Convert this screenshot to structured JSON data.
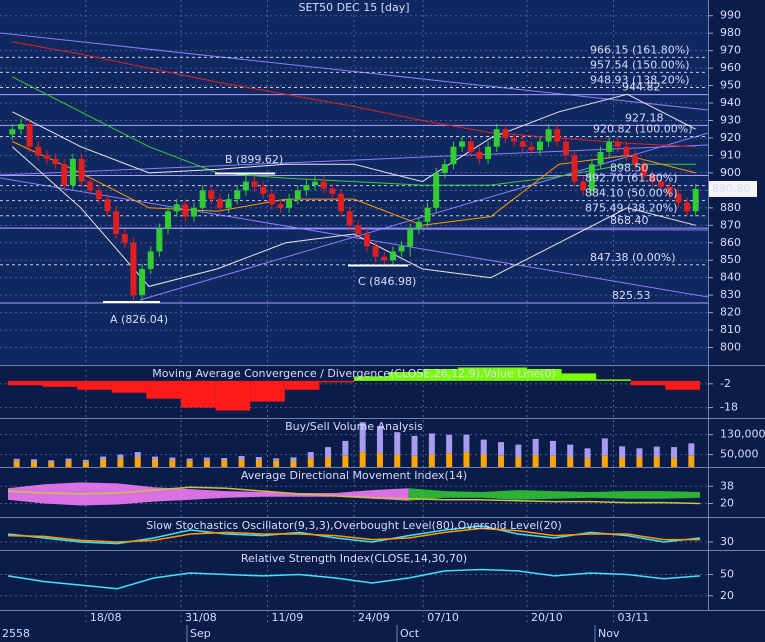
{
  "chart_data": [
    {
      "type": "candlestick",
      "title": "SET50 DEC 15   [day]",
      "categories": [
        null,
        null,
        null,
        null,
        null,
        null,
        null,
        null,
        null,
        "18/08",
        null,
        null,
        null,
        null,
        null,
        null,
        null,
        null,
        null,
        null,
        "31/08",
        null,
        null,
        null,
        null,
        null,
        null,
        null,
        null,
        null,
        "11/09",
        null,
        null,
        null,
        null,
        null,
        null,
        null,
        null,
        null,
        "24/09",
        null,
        null,
        null,
        null,
        null,
        null,
        null,
        "07/10",
        null,
        null,
        null,
        null,
        null,
        null,
        null,
        null,
        null,
        null,
        null,
        "20/10",
        null,
        null,
        null,
        null,
        null,
        null,
        null,
        null,
        null,
        "03/11",
        null,
        null,
        null,
        null,
        null,
        null,
        null,
        null,
        null
      ],
      "periods": [
        "2558",
        "Sep",
        "Oct",
        "Nov"
      ],
      "open": [
        922,
        925,
        928,
        915,
        910,
        908,
        905,
        893,
        908,
        895,
        890,
        885,
        878,
        865,
        860,
        830,
        845,
        855,
        868,
        878,
        882,
        875,
        880,
        890,
        885,
        880,
        885,
        890,
        895,
        892,
        888,
        882,
        880,
        885,
        890,
        893,
        895,
        891,
        888,
        878,
        870,
        865,
        858,
        852,
        850,
        855,
        858,
        868,
        872,
        880,
        900,
        905,
        915,
        918,
        912,
        908,
        915,
        925,
        920,
        918,
        915,
        913,
        918,
        925,
        918,
        910,
        895,
        890,
        905,
        912,
        918,
        915,
        910,
        905,
        898,
        895,
        892,
        888,
        883,
        878
      ],
      "high": [
        928,
        931,
        931,
        918,
        913,
        911,
        908,
        911,
        911,
        898,
        893,
        888,
        881,
        868,
        863,
        848,
        858,
        871,
        881,
        885,
        885,
        883,
        893,
        893,
        888,
        888,
        893,
        899.62,
        898,
        895,
        891,
        885,
        888,
        893,
        896,
        898,
        898,
        894,
        891,
        881,
        873,
        868,
        861,
        855,
        858,
        861,
        871,
        875,
        883,
        903,
        908,
        918,
        921,
        921,
        915,
        918,
        928,
        928,
        923,
        921,
        918,
        921,
        928,
        928,
        921,
        913,
        898,
        908,
        915,
        921,
        921,
        918,
        913,
        908,
        901,
        898,
        895,
        891,
        886,
        893.8
      ],
      "low": [
        919,
        922,
        912,
        907,
        905,
        902,
        890,
        890,
        892,
        887,
        882,
        875,
        862,
        857,
        826.04,
        827,
        842,
        852,
        865,
        875,
        872,
        872,
        877,
        882,
        877,
        877,
        882,
        887,
        889,
        885,
        879,
        877,
        877,
        882,
        887,
        890,
        888,
        885,
        875,
        867,
        862,
        855,
        849,
        846.98,
        847,
        852,
        852,
        865,
        869,
        877,
        897,
        902,
        912,
        909,
        905,
        905,
        912,
        917,
        915,
        912,
        910,
        910,
        915,
        915,
        907,
        892,
        887,
        887,
        902,
        909,
        912,
        907,
        902,
        895,
        892,
        889,
        885,
        880,
        875,
        875
      ],
      "close": [
        925,
        928,
        915,
        910,
        908,
        905,
        893,
        908,
        895,
        890,
        885,
        878,
        865,
        860,
        830,
        845,
        855,
        868,
        878,
        882,
        875,
        880,
        890,
        885,
        880,
        885,
        890,
        895,
        892,
        888,
        882,
        880,
        885,
        890,
        893,
        895,
        891,
        888,
        878,
        870,
        865,
        858,
        852,
        850,
        855,
        858,
        868,
        872,
        880,
        900,
        905,
        915,
        918,
        912,
        908,
        915,
        925,
        920,
        918,
        915,
        913,
        918,
        925,
        918,
        910,
        895,
        890,
        905,
        912,
        918,
        915,
        910,
        905,
        898,
        895,
        892,
        888,
        883,
        878,
        890.8
      ],
      "up_color": "#33cc33",
      "down_color": "#e02020",
      "last_value_label": "890.80",
      "overlays": [
        {
          "color": "#e02020",
          "values": [
            975,
            968,
            960,
            952,
            945,
            938,
            930,
            923,
            920,
            917,
            915
          ]
        },
        {
          "color": "#33cc33",
          "values": [
            955,
            935,
            915,
            900,
            897,
            895,
            893,
            893,
            898,
            905,
            905
          ]
        },
        {
          "color": "#ff9900",
          "values": [
            918,
            900,
            880,
            878,
            885,
            885,
            870,
            875,
            905,
            910,
            900
          ]
        },
        {
          "color": "#e8e8e8",
          "values": [
            935,
            915,
            900,
            902,
            905,
            905,
            895,
            920,
            935,
            945,
            925
          ]
        },
        {
          "color": "#e8e8e8",
          "values": [
            915,
            880,
            835,
            845,
            860,
            865,
            845,
            840,
            860,
            880,
            870
          ]
        }
      ],
      "levels": [
        {
          "value": 966.15,
          "label": "966.15 (161.80%)",
          "color": "#ffff66"
        },
        {
          "value": 957.54,
          "label": "957.54 (150.00%)",
          "color": "#ffff66"
        },
        {
          "value": 948.93,
          "label": "948.93 (138.20%)",
          "color": "#ffff66"
        },
        {
          "value": 920.82,
          "label": "920.82 (100.00%)",
          "color": "#ffff66"
        },
        {
          "value": 892.7,
          "label": "892.70 (61.80%)",
          "color": "#ffff66"
        },
        {
          "value": 884.1,
          "label": "884.10 (50.00%)",
          "color": "#ffff66"
        },
        {
          "value": 875.49,
          "label": "875.49 (38.20%)",
          "color": "#ffff66"
        },
        {
          "value": 847.38,
          "label": "847.38 (0.00%)",
          "color": "#ffff66"
        },
        {
          "value": 944.82,
          "label": "944.82",
          "color": "#ffffff"
        },
        {
          "value": 927.18,
          "label": "927.18",
          "color": "#ffffff"
        },
        {
          "value": 898.5,
          "label": "898.50",
          "color": "#ffffff"
        },
        {
          "value": 868.4,
          "label": "868.40",
          "color": "#ffffff"
        },
        {
          "value": 825.53,
          "label": "825.53",
          "color": "#ffffff"
        }
      ],
      "annotations": [
        {
          "value": 826.04,
          "label": "A (826.04)"
        },
        {
          "value": 899.62,
          "label": "B (899.62)"
        },
        {
          "value": 846.98,
          "label": "C (846.98)"
        }
      ],
      "ylim": [
        790,
        999
      ],
      "yticks": [
        800,
        810,
        820,
        830,
        840,
        850,
        860,
        870,
        880,
        890,
        900,
        910,
        920,
        930,
        940,
        950,
        960,
        970,
        980,
        990
      ],
      "grid": true
    },
    {
      "type": "bar",
      "title": "Moving Average Convergence / Divergence(CLOSE,26,12,9),Value Line(0)",
      "values": [
        -3,
        -4,
        -6,
        -8,
        -12,
        -18,
        -20,
        -14,
        -6,
        -1,
        3,
        6,
        8,
        9,
        9,
        8,
        5,
        1,
        -3,
        -6
      ],
      "positive_color": "#7cfc00",
      "negative_color": "#ff1a1a",
      "ylim": [
        -25,
        10
      ],
      "yticks": [
        -18,
        -2
      ]
    },
    {
      "type": "bar",
      "title": "Buy/Sell Volume Analysis",
      "stacked": true,
      "series": [
        {
          "color": "#ffa500",
          "values": [
            25000,
            22000,
            20000,
            24000,
            21000,
            30000,
            35000,
            40000,
            30000,
            28000,
            25000,
            27000,
            26000,
            30000,
            28000,
            25000,
            24000,
            35000,
            40000,
            45000,
            60000,
            55000,
            50000,
            45000,
            50000,
            55000,
            60000,
            50000,
            45000,
            40000,
            48000,
            45000,
            40000,
            35000,
            45000,
            38000,
            40000,
            42000,
            35000,
            45000
          ]
        },
        {
          "color": "#a99cf0",
          "values": [
            8000,
            9000,
            7000,
            10000,
            8000,
            12000,
            15000,
            20000,
            12000,
            10000,
            9000,
            11000,
            10000,
            14000,
            12000,
            10000,
            15000,
            25000,
            40000,
            60000,
            120000,
            110000,
            90000,
            80000,
            85000,
            75000,
            70000,
            60000,
            55000,
            50000,
            65000,
            60000,
            50000,
            40000,
            70000,
            45000,
            35000,
            40000,
            45000,
            50000
          ]
        }
      ],
      "ylim": [
        0,
        193000
      ],
      "yticks": [
        {
          "value": 50000,
          "label": "50,000"
        },
        {
          "value": 130000,
          "label": "130,000"
        }
      ]
    },
    {
      "type": "line",
      "title": "Average Directional Movement Index(14)",
      "bands": [
        {
          "color": "#ff80ff",
          "upper": [
            36,
            40,
            42,
            41,
            37,
            35,
            33,
            32,
            31,
            31,
            34,
            36,
            null,
            null,
            null,
            null,
            null,
            null,
            null,
            null
          ],
          "lower": [
            24,
            20,
            18,
            19,
            22,
            24,
            26,
            27,
            27,
            27,
            25,
            23,
            null,
            null,
            null,
            null,
            null,
            null,
            null,
            null
          ]
        },
        {
          "color": "#33cc33",
          "upper": [
            null,
            null,
            null,
            null,
            null,
            null,
            null,
            null,
            null,
            null,
            null,
            36,
            33,
            32,
            34,
            33,
            32,
            33,
            33,
            32
          ],
          "lower": [
            null,
            null,
            null,
            null,
            null,
            null,
            null,
            null,
            null,
            null,
            null,
            23,
            26,
            26,
            24,
            25,
            26,
            25,
            25,
            26
          ]
        }
      ],
      "series": [
        {
          "color": "#d0c040",
          "values": [
            33,
            31,
            30,
            31,
            34,
            37,
            36,
            33,
            30,
            28,
            26,
            25,
            24,
            24,
            23,
            22,
            22,
            21,
            21,
            20
          ]
        }
      ],
      "ylim": [
        6,
        57
      ],
      "yticks": [
        20,
        38
      ]
    },
    {
      "type": "line",
      "title": "Slow Stochastics Oscillator(9,3,3),Overbought Level(80),Oversold Level(20)",
      "series": [
        {
          "color": "#40e0ff",
          "values": [
            40,
            35,
            30,
            28,
            35,
            45,
            40,
            38,
            42,
            35,
            30,
            38,
            45,
            50,
            40,
            35,
            42,
            38,
            30,
            35
          ]
        },
        {
          "color": "#ff9900",
          "values": [
            38,
            37,
            32,
            30,
            32,
            40,
            42,
            40,
            40,
            38,
            33,
            35,
            42,
            47,
            44,
            38,
            40,
            40,
            33,
            33
          ]
        }
      ],
      "ylim": [
        20,
        60
      ],
      "yticks": [
        30
      ]
    },
    {
      "type": "line",
      "title": "Relative Strength Index(CLOSE,14,30,70)",
      "series": [
        {
          "color": "#40e0ff",
          "values": [
            48,
            40,
            35,
            30,
            45,
            52,
            50,
            48,
            50,
            45,
            38,
            45,
            55,
            57,
            55,
            48,
            52,
            50,
            44,
            48
          ]
        }
      ],
      "ylim": [
        0,
        83
      ],
      "yticks": [
        20,
        50
      ]
    }
  ]
}
